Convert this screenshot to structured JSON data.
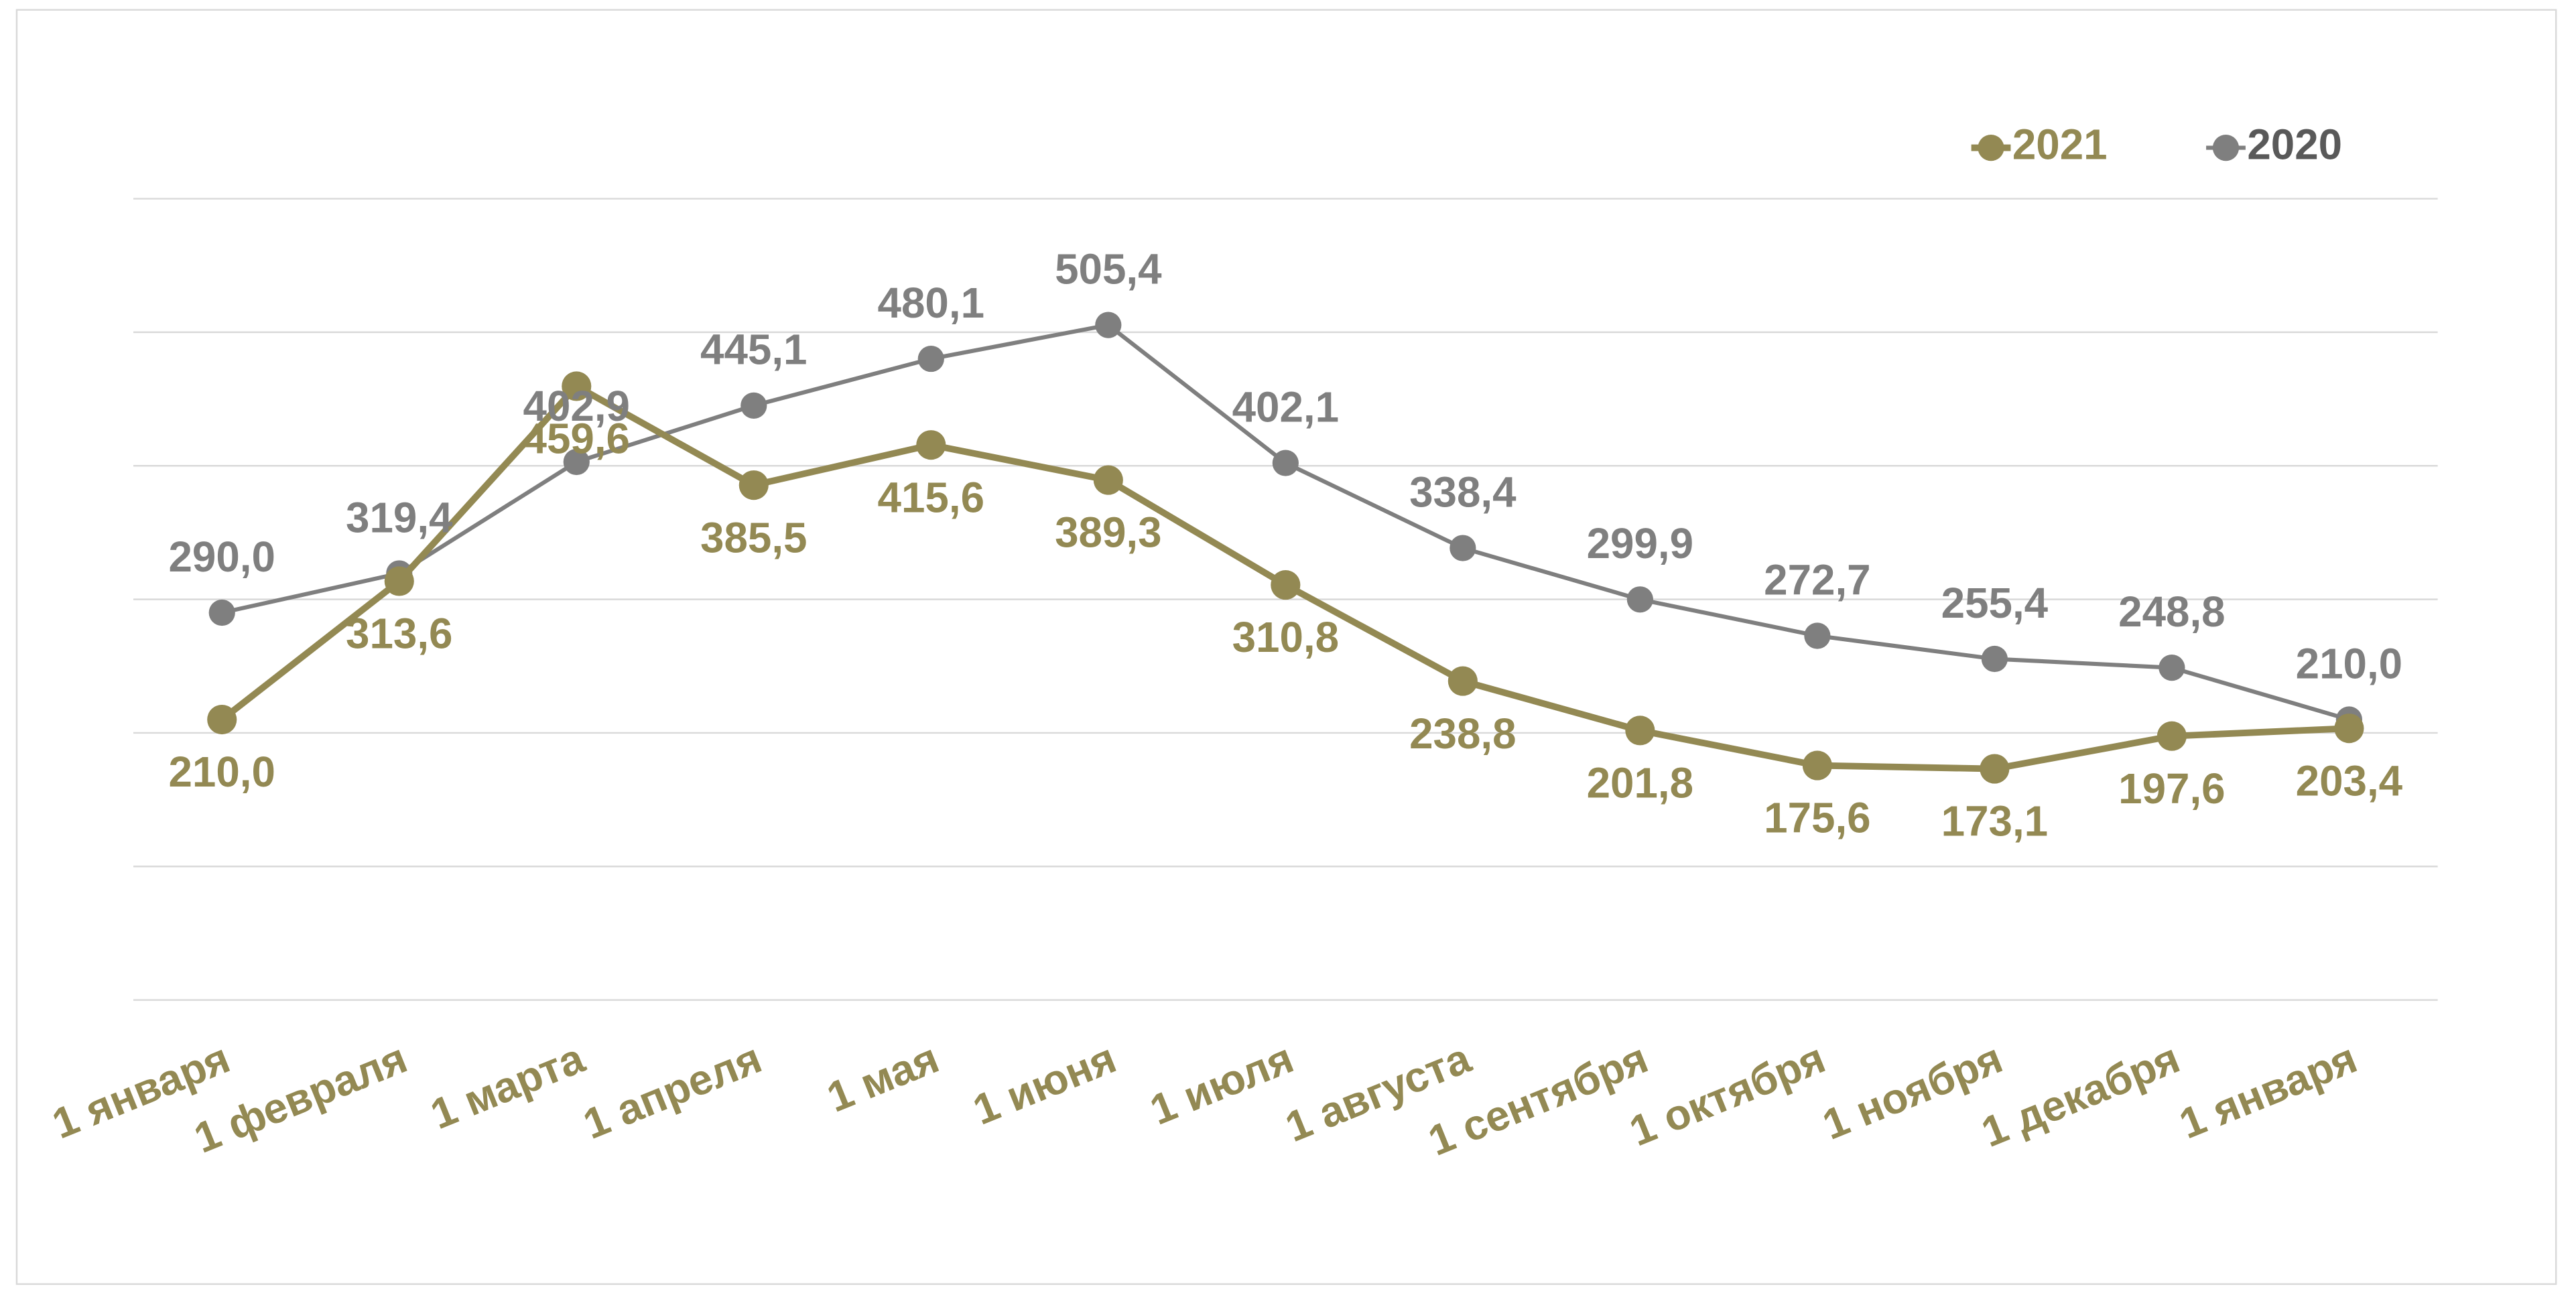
{
  "chart_data": {
    "type": "line",
    "categories": [
      "1 января",
      "1 февраля",
      "1 марта",
      "1 апреля",
      "1 мая",
      "1 июня",
      "1 июля",
      "1 августа",
      "1 сентября",
      "1 октября",
      "1 ноября",
      "1 декабря",
      "1 января"
    ],
    "series": [
      {
        "name": "2021",
        "color": "#938953",
        "values": [
          210.0,
          313.6,
          459.6,
          385.5,
          415.6,
          389.3,
          310.8,
          238.8,
          201.8,
          175.6,
          173.1,
          197.6,
          203.4
        ],
        "value_labels": [
          "210,0",
          "313,6",
          "459,6",
          "385,5",
          "415,6",
          "389,3",
          "310,8",
          "238,8",
          "201,8",
          "175,6",
          "173,1",
          "197,6",
          "203,4"
        ]
      },
      {
        "name": "2020",
        "color": "#7f7f7f",
        "values": [
          290.0,
          319.4,
          402.9,
          445.1,
          480.1,
          505.4,
          402.1,
          338.4,
          299.9,
          272.7,
          255.4,
          248.8,
          210.0
        ],
        "value_labels": [
          "290,0",
          "319,4",
          "402,9",
          "445,1",
          "480,1",
          "505,4",
          "402,1",
          "338,4",
          "299,9",
          "272,7",
          "255,4",
          "248,8",
          "210,0"
        ]
      }
    ],
    "ylim": [
      0,
      600
    ],
    "yticks": [
      0,
      100,
      200,
      300,
      400,
      500,
      600
    ],
    "grid": true,
    "legend": "top-right"
  }
}
